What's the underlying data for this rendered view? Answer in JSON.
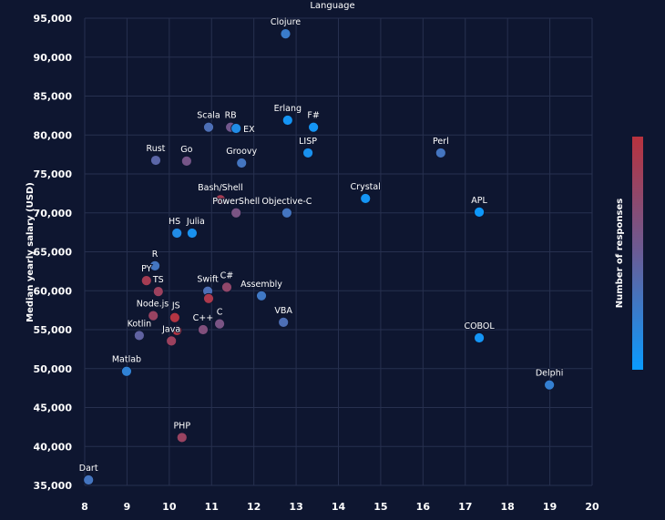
{
  "chart_data": {
    "type": "scatter",
    "title": "Language",
    "xlabel": "",
    "ylabel": "Median yearly salary (USD)",
    "xlim": [
      8,
      20
    ],
    "ylim": [
      35000,
      95000
    ],
    "x_ticks": [
      "8",
      "9",
      "10",
      "11",
      "12",
      "13",
      "14",
      "15",
      "16",
      "17",
      "18",
      "19",
      "20"
    ],
    "y_ticks": [
      "35,000",
      "40,000",
      "45,000",
      "50,000",
      "55,000",
      "60,000",
      "65,000",
      "70,000",
      "75,000",
      "80,000",
      "85,000",
      "90,000",
      "95,000"
    ],
    "grid": true,
    "colorbar": {
      "label": "Number of responses",
      "colors": [
        "#0a9bff",
        "#6a5c96",
        "#b8323e"
      ],
      "placement": "right"
    },
    "points": [
      {
        "label": "Clojure",
        "x": 12.75,
        "y": 93000,
        "color_value": 0.25
      },
      {
        "label": "Scala",
        "x": 10.93,
        "y": 81000,
        "color_value": 0.35
      },
      {
        "label": "RB",
        "x": 11.45,
        "y": 81000,
        "color_value": 0.55
      },
      {
        "label": "EX",
        "x": 11.58,
        "y": 80850,
        "color_value": 0.12
      },
      {
        "label": "Erlang",
        "x": 12.8,
        "y": 81900,
        "color_value": 0.05
      },
      {
        "label": "F#",
        "x": 13.41,
        "y": 81000,
        "color_value": 0.05
      },
      {
        "label": "LISP",
        "x": 13.28,
        "y": 77700,
        "color_value": 0.08
      },
      {
        "label": "Rust",
        "x": 9.68,
        "y": 76750,
        "color_value": 0.42
      },
      {
        "label": "Go",
        "x": 10.41,
        "y": 76650,
        "color_value": 0.58
      },
      {
        "label": "Groovy",
        "x": 11.71,
        "y": 76400,
        "color_value": 0.3
      },
      {
        "label": "Bash/Shell",
        "x": 11.21,
        "y": 71700,
        "color_value": 0.88
      },
      {
        "label": "PowerShell",
        "x": 11.58,
        "y": 70000,
        "color_value": 0.6
      },
      {
        "label": "Objective-C",
        "x": 12.78,
        "y": 70000,
        "color_value": 0.3
      },
      {
        "label": "HS",
        "x": 10.18,
        "y": 67400,
        "color_value": 0.12
      },
      {
        "label": "Julia",
        "x": 10.54,
        "y": 67400,
        "color_value": 0.08
      },
      {
        "label": "Crystal",
        "x": 14.64,
        "y": 71850,
        "color_value": 0.05
      },
      {
        "label": "Perl",
        "x": 16.42,
        "y": 77700,
        "color_value": 0.3
      },
      {
        "label": "APL",
        "x": 17.33,
        "y": 70100,
        "color_value": 0.02
      },
      {
        "label": "COBOL",
        "x": 17.33,
        "y": 53950,
        "color_value": 0.05
      },
      {
        "label": "Delphi",
        "x": 18.99,
        "y": 47900,
        "color_value": 0.22
      },
      {
        "label": "R",
        "x": 9.66,
        "y": 63200,
        "color_value": 0.3
      },
      {
        "label": "PY",
        "x": 9.46,
        "y": 61300,
        "color_value": 0.88
      },
      {
        "label": "TS",
        "x": 9.74,
        "y": 59900,
        "color_value": 0.82
      },
      {
        "label": "Swift",
        "x": 10.91,
        "y": 59950,
        "color_value": 0.35
      },
      {
        "label": "",
        "x": 10.93,
        "y": 59000,
        "color_value": 0.92
      },
      {
        "label": "C#",
        "x": 11.36,
        "y": 60450,
        "color_value": 0.75
      },
      {
        "label": "Assembly",
        "x": 12.18,
        "y": 59350,
        "color_value": 0.28
      },
      {
        "label": "Node.js",
        "x": 9.62,
        "y": 56800,
        "color_value": 0.8
      },
      {
        "label": "JS",
        "x": 10.13,
        "y": 56550,
        "color_value": 0.97
      },
      {
        "label": "",
        "x": 10.18,
        "y": 54900,
        "color_value": 0.97
      },
      {
        "label": "Java",
        "x": 10.05,
        "y": 53550,
        "color_value": 0.82
      },
      {
        "label": "Kotlin",
        "x": 9.29,
        "y": 54250,
        "color_value": 0.45
      },
      {
        "label": "C++",
        "x": 10.8,
        "y": 55000,
        "color_value": 0.65
      },
      {
        "label": "C",
        "x": 11.19,
        "y": 55750,
        "color_value": 0.6
      },
      {
        "label": "VBA",
        "x": 12.7,
        "y": 55950,
        "color_value": 0.35
      },
      {
        "label": "Matlab",
        "x": 8.99,
        "y": 49650,
        "color_value": 0.2
      },
      {
        "label": "PHP",
        "x": 10.3,
        "y": 41150,
        "color_value": 0.8
      },
      {
        "label": "Dart",
        "x": 8.09,
        "y": 35700,
        "color_value": 0.3
      }
    ]
  }
}
